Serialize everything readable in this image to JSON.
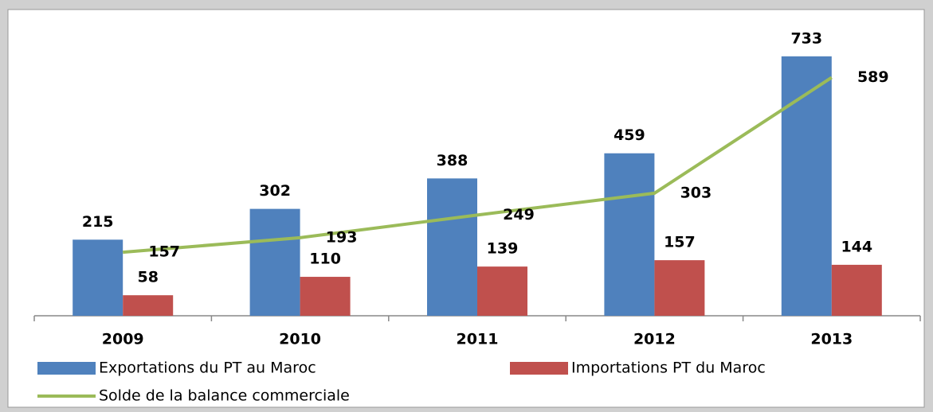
{
  "chart_data": {
    "type": "bar_line",
    "categories": [
      "2009",
      "2010",
      "2011",
      "2012",
      "2013"
    ],
    "series": [
      {
        "name": "Exportations du PT au Maroc",
        "type": "bar",
        "color": "#4f81bd",
        "values": [
          215,
          302,
          388,
          459,
          733
        ]
      },
      {
        "name": "Importations PT du Maroc",
        "type": "bar",
        "color": "#c0504d",
        "values": [
          58,
          110,
          139,
          157,
          144
        ]
      },
      {
        "name": "Solde de la balance commerciale",
        "type": "line",
        "axis": "y2",
        "color": "#9bbb59",
        "values": [
          157,
          193,
          249,
          303,
          589
        ]
      }
    ],
    "ylim": [
      0,
      800
    ],
    "y2lim": [
      0,
      700
    ],
    "grid": false,
    "legend": "bottom"
  }
}
